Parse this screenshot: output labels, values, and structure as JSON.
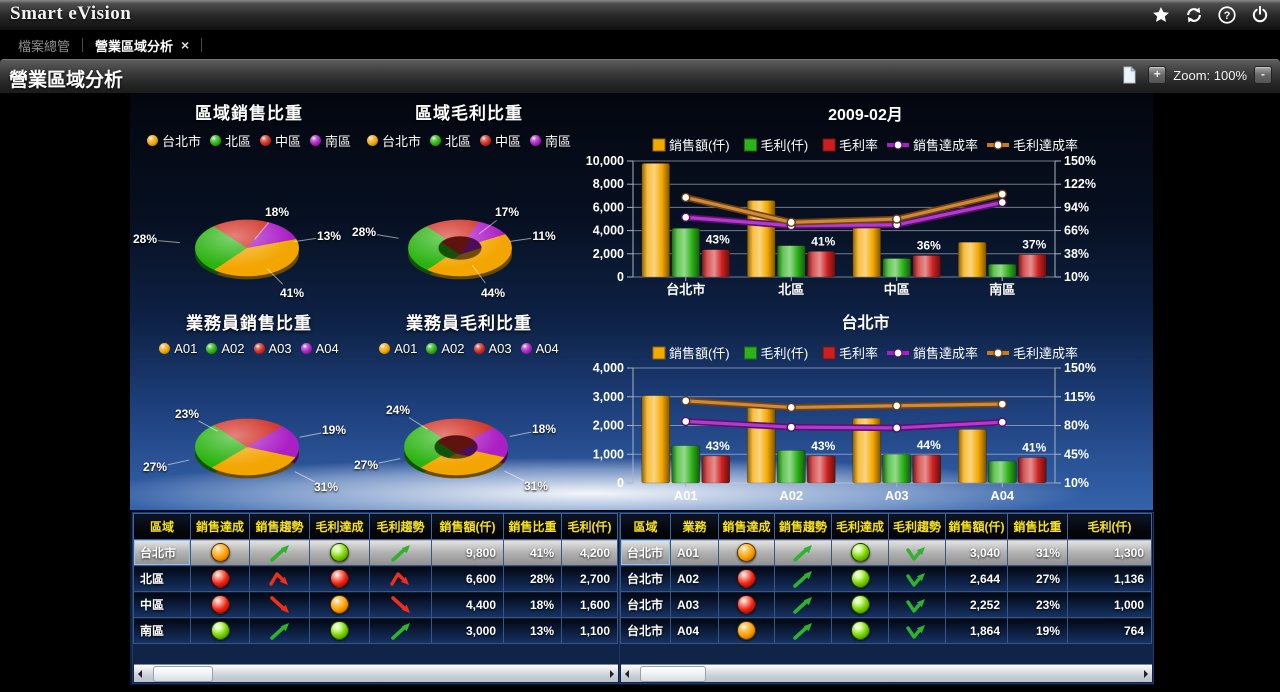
{
  "app_title": "Smart eVision",
  "icons": {
    "help_glyph": "?"
  },
  "tab_bar": {
    "file_explorer": "檔案總管",
    "active_tab": "營業區域分析",
    "close_label": "×"
  },
  "page_bar": {
    "title": "營業區域分析",
    "zoom_label": "Zoom: 100%",
    "zoom_in": "+",
    "zoom_out": "-"
  },
  "palette": {
    "orange": "#f5a800",
    "green": "#2db31a",
    "red": "#cc2020",
    "purple": "#a41ec8",
    "bronze": "#c9791e",
    "header_yellow": "#f7e11c"
  },
  "chart_data": [
    {
      "id": "pie-region-sales",
      "type": "pie",
      "donut": false,
      "title": "區域銷售比重",
      "legend": [
        "台北市",
        "北區",
        "中區",
        "南區"
      ],
      "colors": [
        "#f3a602",
        "#28b30e",
        "#d02a1e",
        "#ab1fc6"
      ],
      "values": [
        41,
        28,
        18,
        13
      ],
      "labels": [
        "41%",
        "28%",
        "18%",
        "13%"
      ]
    },
    {
      "id": "pie-region-profit",
      "type": "pie",
      "donut": true,
      "title": "區域毛利比重",
      "legend": [
        "台北市",
        "北區",
        "中區",
        "南區"
      ],
      "colors": [
        "#f3a602",
        "#28b30e",
        "#d02a1e",
        "#ab1fc6"
      ],
      "values": [
        44,
        28,
        17,
        11
      ],
      "labels": [
        "44%",
        "28%",
        "17%",
        "11%"
      ]
    },
    {
      "id": "pie-rep-sales",
      "type": "pie",
      "donut": false,
      "title": "業務員銷售比重",
      "legend": [
        "A01",
        "A02",
        "A03",
        "A04"
      ],
      "colors": [
        "#f3a602",
        "#28b30e",
        "#d02a1e",
        "#ab1fc6"
      ],
      "values": [
        31,
        27,
        23,
        19
      ],
      "labels": [
        "31%",
        "27%",
        "23%",
        "19%"
      ]
    },
    {
      "id": "pie-rep-profit",
      "type": "pie",
      "donut": true,
      "title": "業務員毛利比重",
      "legend": [
        "A01",
        "A02",
        "A03",
        "A04"
      ],
      "colors": [
        "#f3a602",
        "#28b30e",
        "#d02a1e",
        "#ab1fc6"
      ],
      "values": [
        31,
        27,
        24,
        18
      ],
      "labels": [
        "31%",
        "27%",
        "24%",
        "18%"
      ]
    },
    {
      "id": "bar-region",
      "type": "bar",
      "title": "2009-02月",
      "categories": [
        "台北市",
        "北區",
        "中區",
        "南區"
      ],
      "left_axis": {
        "min": 0,
        "max": 10000,
        "ticks": [
          "10,000",
          "8,000",
          "6,000",
          "4,000",
          "2,000",
          "0"
        ]
      },
      "right_axis": {
        "min": 10,
        "max": 150,
        "ticks": [
          "150%",
          "122%",
          "94%",
          "66%",
          "38%",
          "10%"
        ]
      },
      "series": [
        {
          "name": "銷售額(仟)",
          "kind": "bar",
          "color": "orange",
          "axis": "left",
          "values": [
            9800,
            6600,
            4400,
            3000
          ]
        },
        {
          "name": "毛利(仟)",
          "kind": "bar",
          "color": "green",
          "axis": "left",
          "values": [
            4200,
            2700,
            1600,
            1100
          ]
        },
        {
          "name": "毛利率",
          "kind": "bar",
          "color": "red",
          "axis": "right",
          "values": [
            43,
            41,
            36,
            37
          ],
          "value_labels": [
            "43%",
            "41%",
            "36%",
            "37%"
          ]
        },
        {
          "name": "銷售達成率",
          "kind": "line",
          "color": "purple",
          "axis": "right",
          "values": [
            82,
            72,
            73,
            100
          ]
        },
        {
          "name": "毛利達成率",
          "kind": "line",
          "color": "bronze",
          "axis": "right",
          "values": [
            106,
            76,
            80,
            110
          ]
        }
      ]
    },
    {
      "id": "bar-taipei",
      "type": "bar",
      "title": "台北市",
      "categories": [
        "A01",
        "A02",
        "A03",
        "A04"
      ],
      "left_axis": {
        "min": 0,
        "max": 4000,
        "ticks": [
          "4,000",
          "3,000",
          "2,000",
          "1,000",
          "0"
        ]
      },
      "right_axis": {
        "min": 10,
        "max": 150,
        "ticks": [
          "150%",
          "115%",
          "80%",
          "45%",
          "10%"
        ]
      },
      "series": [
        {
          "name": "銷售額(仟)",
          "kind": "bar",
          "color": "orange",
          "axis": "left",
          "values": [
            3040,
            2644,
            2252,
            1864
          ]
        },
        {
          "name": "毛利(仟)",
          "kind": "bar",
          "color": "green",
          "axis": "left",
          "values": [
            1300,
            1136,
            1000,
            764
          ]
        },
        {
          "name": "毛利率",
          "kind": "bar",
          "color": "red",
          "axis": "right",
          "values": [
            43,
            43,
            44,
            41
          ],
          "value_labels": [
            "43%",
            "43%",
            "44%",
            "41%"
          ]
        },
        {
          "name": "銷售達成率",
          "kind": "line",
          "color": "purple",
          "axis": "right",
          "values": [
            85,
            78,
            77,
            84
          ]
        },
        {
          "name": "毛利達成率",
          "kind": "line",
          "color": "bronze",
          "axis": "right",
          "values": [
            110,
            102,
            104,
            106
          ]
        }
      ]
    }
  ],
  "tables": {
    "left": {
      "headers": [
        "區域",
        "銷售達成",
        "銷售趨勢",
        "毛利達成",
        "毛利趨勢",
        "銷售額(仟)",
        "銷售比重",
        "毛利(仟)"
      ],
      "col_types": [
        "text",
        "light",
        "trend",
        "light",
        "trend",
        "num",
        "num",
        "num"
      ],
      "selected_row": 0,
      "rows": [
        [
          "台北市",
          "orange",
          "up-green",
          "green",
          "up-green",
          "9,800",
          "41%",
          "4,200"
        ],
        [
          "北區",
          "red",
          "peak-red",
          "red",
          "peak-red",
          "6,600",
          "28%",
          "2,700"
        ],
        [
          "中區",
          "red",
          "down-red",
          "orange",
          "down-red",
          "4,400",
          "18%",
          "1,600"
        ],
        [
          "南區",
          "green",
          "up-green",
          "green",
          "up-green",
          "3,000",
          "13%",
          "1,100"
        ]
      ]
    },
    "right": {
      "headers": [
        "區域",
        "業務",
        "銷售達成",
        "銷售趨勢",
        "毛利達成",
        "毛利趨勢",
        "銷售額(仟)",
        "銷售比重",
        "毛利(仟)"
      ],
      "col_types": [
        "text",
        "text",
        "light",
        "trend",
        "light",
        "trend",
        "num",
        "num",
        "num"
      ],
      "selected_row": 0,
      "rows": [
        [
          "台北市",
          "A01",
          "orange",
          "up-green",
          "green",
          "valley-green",
          "3,040",
          "31%",
          "1,300"
        ],
        [
          "台北市",
          "A02",
          "red",
          "up-green",
          "green",
          "valley-green",
          "2,644",
          "27%",
          "1,136"
        ],
        [
          "台北市",
          "A03",
          "red",
          "up-green",
          "green",
          "valley-green",
          "2,252",
          "23%",
          "1,000"
        ],
        [
          "台北市",
          "A04",
          "orange",
          "up-green",
          "green",
          "valley-green",
          "1,864",
          "19%",
          "764"
        ]
      ]
    }
  }
}
